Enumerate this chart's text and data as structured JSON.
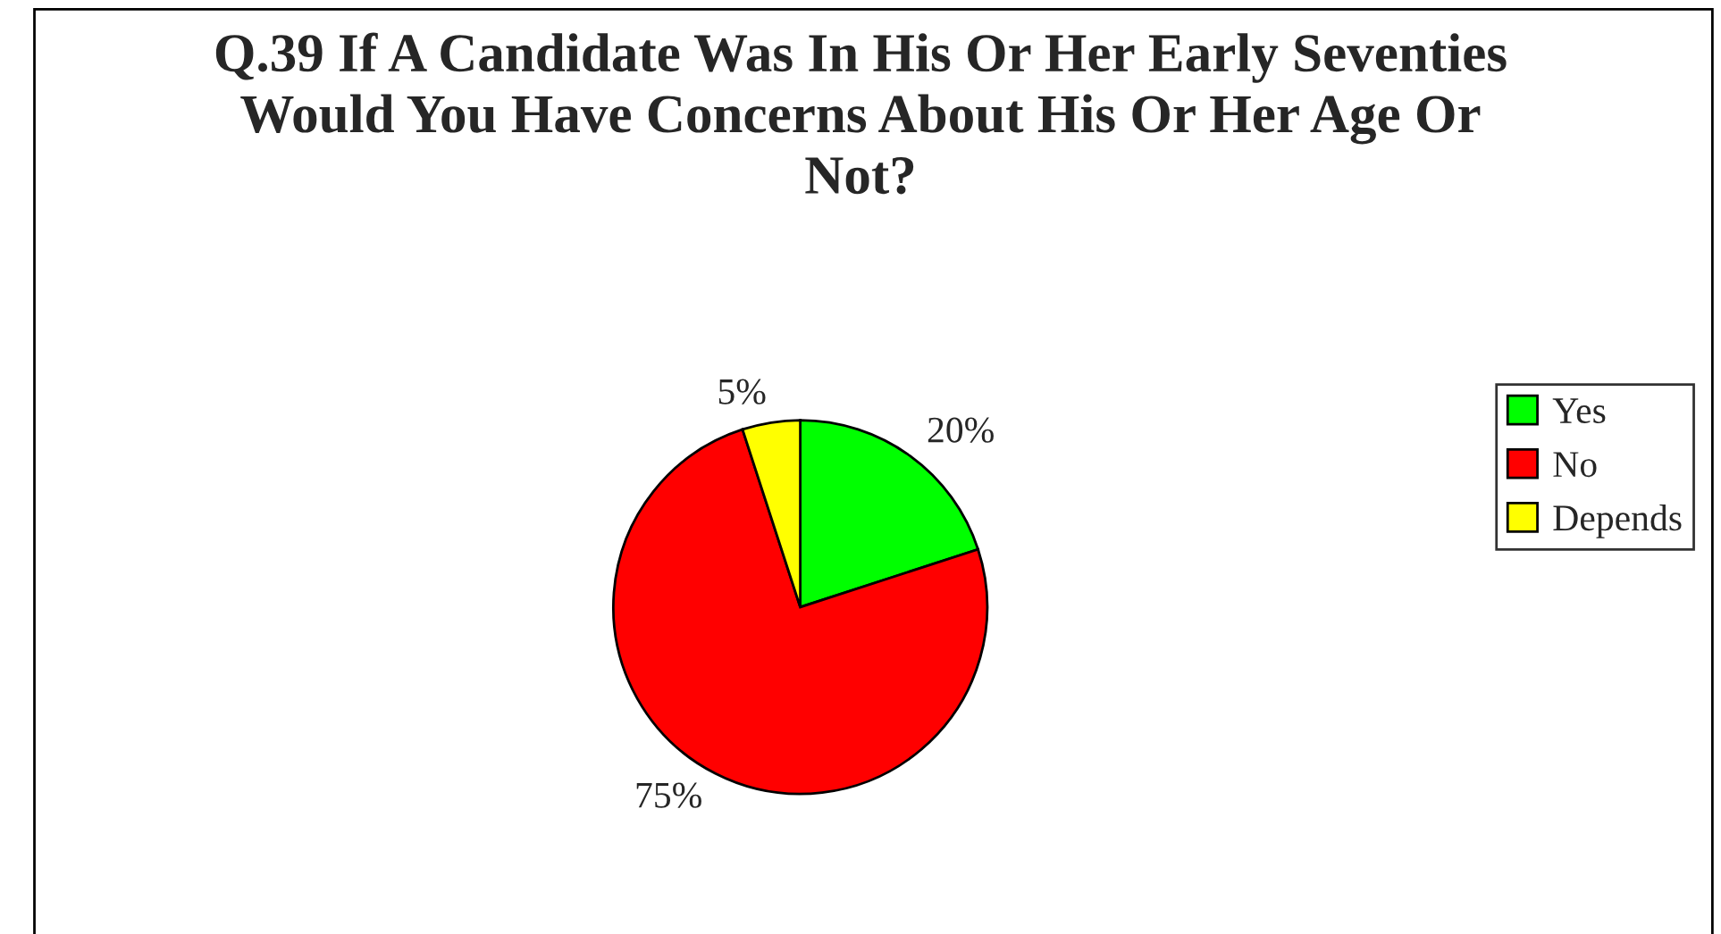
{
  "chart_data": {
    "type": "pie",
    "title": "Q.39 If A Candidate Was In His Or Her Early Seventies Would You Have Concerns About His Or Her Age Or Not?",
    "categories": [
      "Yes",
      "No",
      "Depends"
    ],
    "values": [
      20,
      75,
      5
    ],
    "colors": [
      "#00ff00",
      "#ff0000",
      "#ffff00"
    ],
    "value_labels": [
      "20%",
      "75%",
      "5%"
    ],
    "legend": "right"
  }
}
